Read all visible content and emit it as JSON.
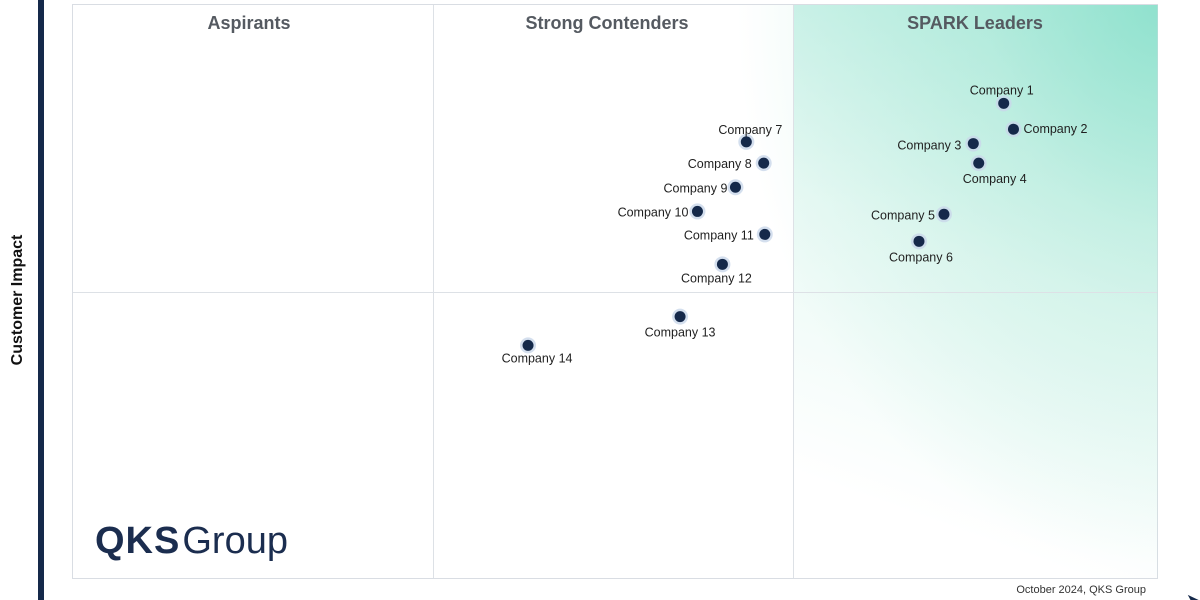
{
  "chart_data": {
    "type": "scatter",
    "ylabel": "Customer Impact",
    "xlabel": "",
    "quadrants": [
      "Aspirants",
      "Strong Contenders",
      "SPARK Leaders"
    ],
    "points": [
      {
        "label": "Company 1",
        "x": 0.857,
        "y": 0.829
      },
      {
        "label": "Company 2",
        "x": 0.866,
        "y": 0.784
      },
      {
        "label": "Company 3",
        "x": 0.829,
        "y": 0.759
      },
      {
        "label": "Company 4",
        "x": 0.834,
        "y": 0.725
      },
      {
        "label": "Company 5",
        "x": 0.802,
        "y": 0.636
      },
      {
        "label": "Company 6",
        "x": 0.779,
        "y": 0.589
      },
      {
        "label": "Company 7",
        "x": 0.62,
        "y": 0.762
      },
      {
        "label": "Company 8",
        "x": 0.636,
        "y": 0.725
      },
      {
        "label": "Company 9",
        "x": 0.61,
        "y": 0.683
      },
      {
        "label": "Company 10",
        "x": 0.575,
        "y": 0.641
      },
      {
        "label": "Company 11",
        "x": 0.637,
        "y": 0.601
      },
      {
        "label": "Company 12",
        "x": 0.598,
        "y": 0.549
      },
      {
        "label": "Company 13",
        "x": 0.559,
        "y": 0.458
      },
      {
        "label": "Company 14",
        "x": 0.419,
        "y": 0.408
      }
    ],
    "point_color": "#15294a",
    "accent_color": "#82dec8"
  },
  "logo": {
    "primary": "QKS",
    "secondary": "Group"
  },
  "footnote": "October 2024, QKS Group"
}
